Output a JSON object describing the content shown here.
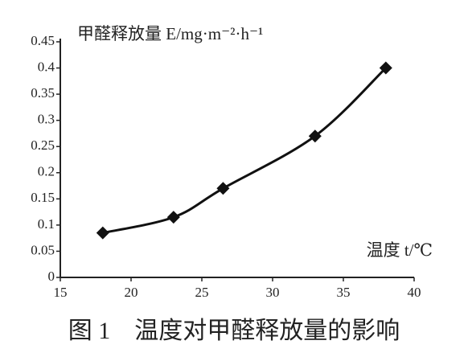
{
  "chart_data": {
    "type": "line",
    "title": "图 1　温度对甲醛释放量的影响",
    "y_label": "甲醛释放量 E/mg·m⁻²·h⁻¹",
    "x_label": "温度 t/℃",
    "x": [
      18,
      23,
      26.5,
      33,
      38
    ],
    "series": [
      {
        "color": "#111111",
        "values": [
          0.085,
          0.115,
          0.17,
          0.27,
          0.4
        ]
      }
    ],
    "xlim": [
      15,
      40
    ],
    "xticks": [
      15,
      20,
      25,
      30,
      35,
      40
    ],
    "ylim": [
      0,
      0.45
    ],
    "yticks": [
      0,
      0.05,
      0.1,
      0.15,
      0.2,
      0.25,
      0.3,
      0.35,
      0.4,
      0.45
    ],
    "grid": false,
    "markers": "diamond",
    "smooth": true
  }
}
